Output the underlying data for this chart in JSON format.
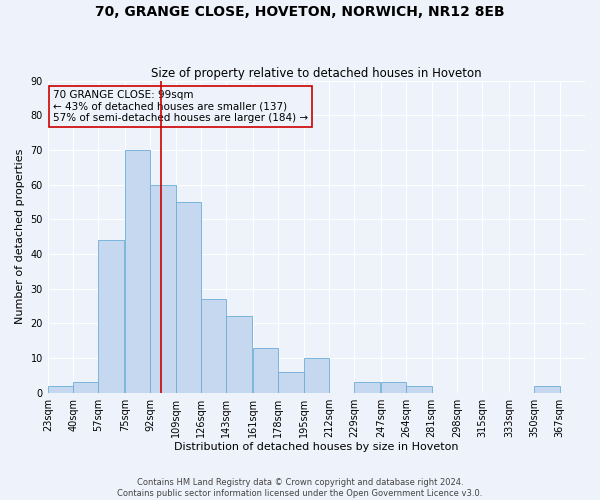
{
  "title": "70, GRANGE CLOSE, HOVETON, NORWICH, NR12 8EB",
  "subtitle": "Size of property relative to detached houses in Hoveton",
  "xlabel": "Distribution of detached houses by size in Hoveton",
  "ylabel": "Number of detached properties",
  "bin_labels": [
    "23sqm",
    "40sqm",
    "57sqm",
    "75sqm",
    "92sqm",
    "109sqm",
    "126sqm",
    "143sqm",
    "161sqm",
    "178sqm",
    "195sqm",
    "212sqm",
    "229sqm",
    "247sqm",
    "264sqm",
    "281sqm",
    "298sqm",
    "315sqm",
    "333sqm",
    "350sqm",
    "367sqm"
  ],
  "bin_edges": [
    23,
    40,
    57,
    75,
    92,
    109,
    126,
    143,
    161,
    178,
    195,
    212,
    229,
    247,
    264,
    281,
    298,
    315,
    333,
    350,
    367,
    384
  ],
  "counts": [
    2,
    3,
    44,
    70,
    60,
    55,
    27,
    22,
    13,
    6,
    10,
    0,
    3,
    3,
    2,
    0,
    0,
    0,
    0,
    2,
    0
  ],
  "bar_color": "#c5d8f0",
  "bar_edge_color": "#6aaed6",
  "property_value": 99,
  "vline_color": "#cc0000",
  "annotation_box_edge": "#cc0000",
  "annotation_text_line1": "70 GRANGE CLOSE: 99sqm",
  "annotation_text_line2": "← 43% of detached houses are smaller (137)",
  "annotation_text_line3": "57% of semi-detached houses are larger (184) →",
  "ylim": [
    0,
    90
  ],
  "yticks": [
    0,
    10,
    20,
    30,
    40,
    50,
    60,
    70,
    80,
    90
  ],
  "footer1": "Contains HM Land Registry data © Crown copyright and database right 2024.",
  "footer2": "Contains public sector information licensed under the Open Government Licence v3.0.",
  "bg_color": "#eef2fa",
  "grid_color": "#ffffff",
  "title_fontsize": 10,
  "subtitle_fontsize": 8.5,
  "axis_label_fontsize": 8,
  "tick_fontsize": 7,
  "annotation_fontsize": 7.5,
  "footer_fontsize": 6
}
